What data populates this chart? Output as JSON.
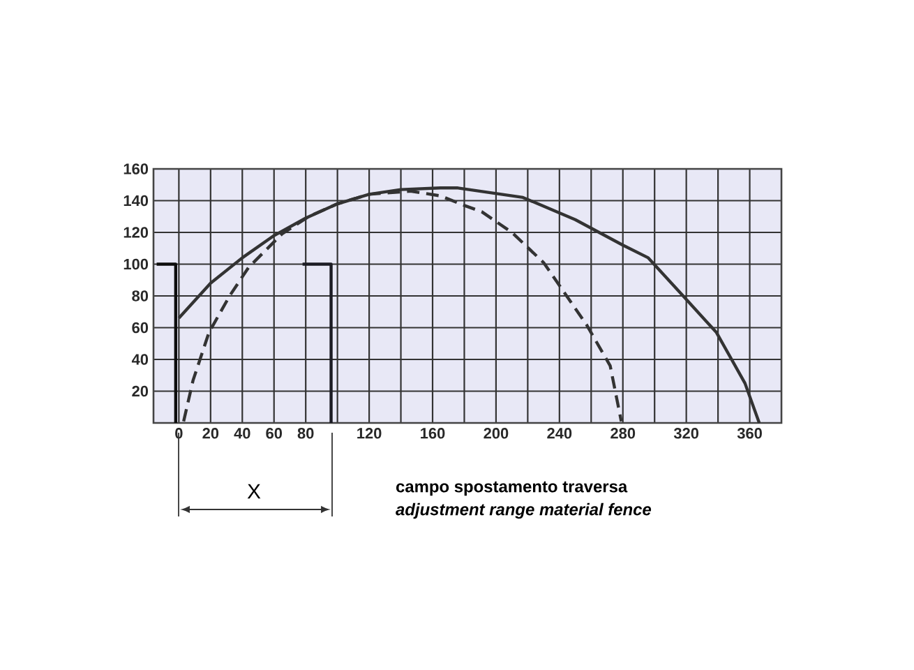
{
  "chart_data": {
    "type": "line",
    "xlim": [
      -16,
      380
    ],
    "ylim": [
      0,
      160
    ],
    "xticks": [
      0,
      20,
      40,
      60,
      80,
      {
        "value": 100,
        "label": null
      },
      120,
      {
        "value": 140,
        "label": null
      },
      160,
      {
        "value": 180,
        "label": null
      },
      200,
      {
        "value": 220,
        "label": null
      },
      240,
      {
        "value": 260,
        "label": null
      },
      280,
      {
        "value": 300,
        "label": null
      },
      320,
      {
        "value": 340,
        "label": null
      },
      360
    ],
    "yticks": [
      20,
      40,
      60,
      80,
      100,
      120,
      140,
      160
    ],
    "grid": true,
    "marker": "none",
    "series": [
      {
        "color": "#333333",
        "line_style": "solid",
        "x": [
          0,
          20,
          40,
          60,
          80,
          100,
          120,
          140,
          165,
          176,
          217,
          250,
          280,
          296,
          318,
          339,
          357,
          366
        ],
        "values": [
          66,
          88,
          104,
          118,
          129,
          138,
          144,
          147,
          148,
          148,
          142,
          128,
          112,
          104,
          80,
          57,
          25,
          0
        ]
      },
      {
        "color": "#333333",
        "line_style": "dashed",
        "x": [
          3,
          9,
          19,
          32,
          44,
          65,
          82,
          100,
          120,
          146,
          165,
          180,
          191,
          210,
          230,
          257,
          272,
          279
        ],
        "values": [
          1,
          27,
          57,
          80,
          98,
          119,
          130,
          138,
          144,
          146,
          143,
          137,
          133,
          120,
          101,
          62,
          36,
          1
        ]
      },
      {
        "color": "#0d0d0d",
        "line_style": "solid",
        "x": [
          -14,
          -2,
          -2
        ],
        "values": [
          100,
          100,
          0
        ]
      },
      {
        "color": "#1c1c24",
        "line_style": "solid",
        "x": [
          78,
          96,
          96
        ],
        "values": [
          100,
          100,
          0
        ]
      }
    ],
    "annotations": [
      "X",
      "campo spostamento traversa",
      "adjustment range material fence"
    ]
  }
}
